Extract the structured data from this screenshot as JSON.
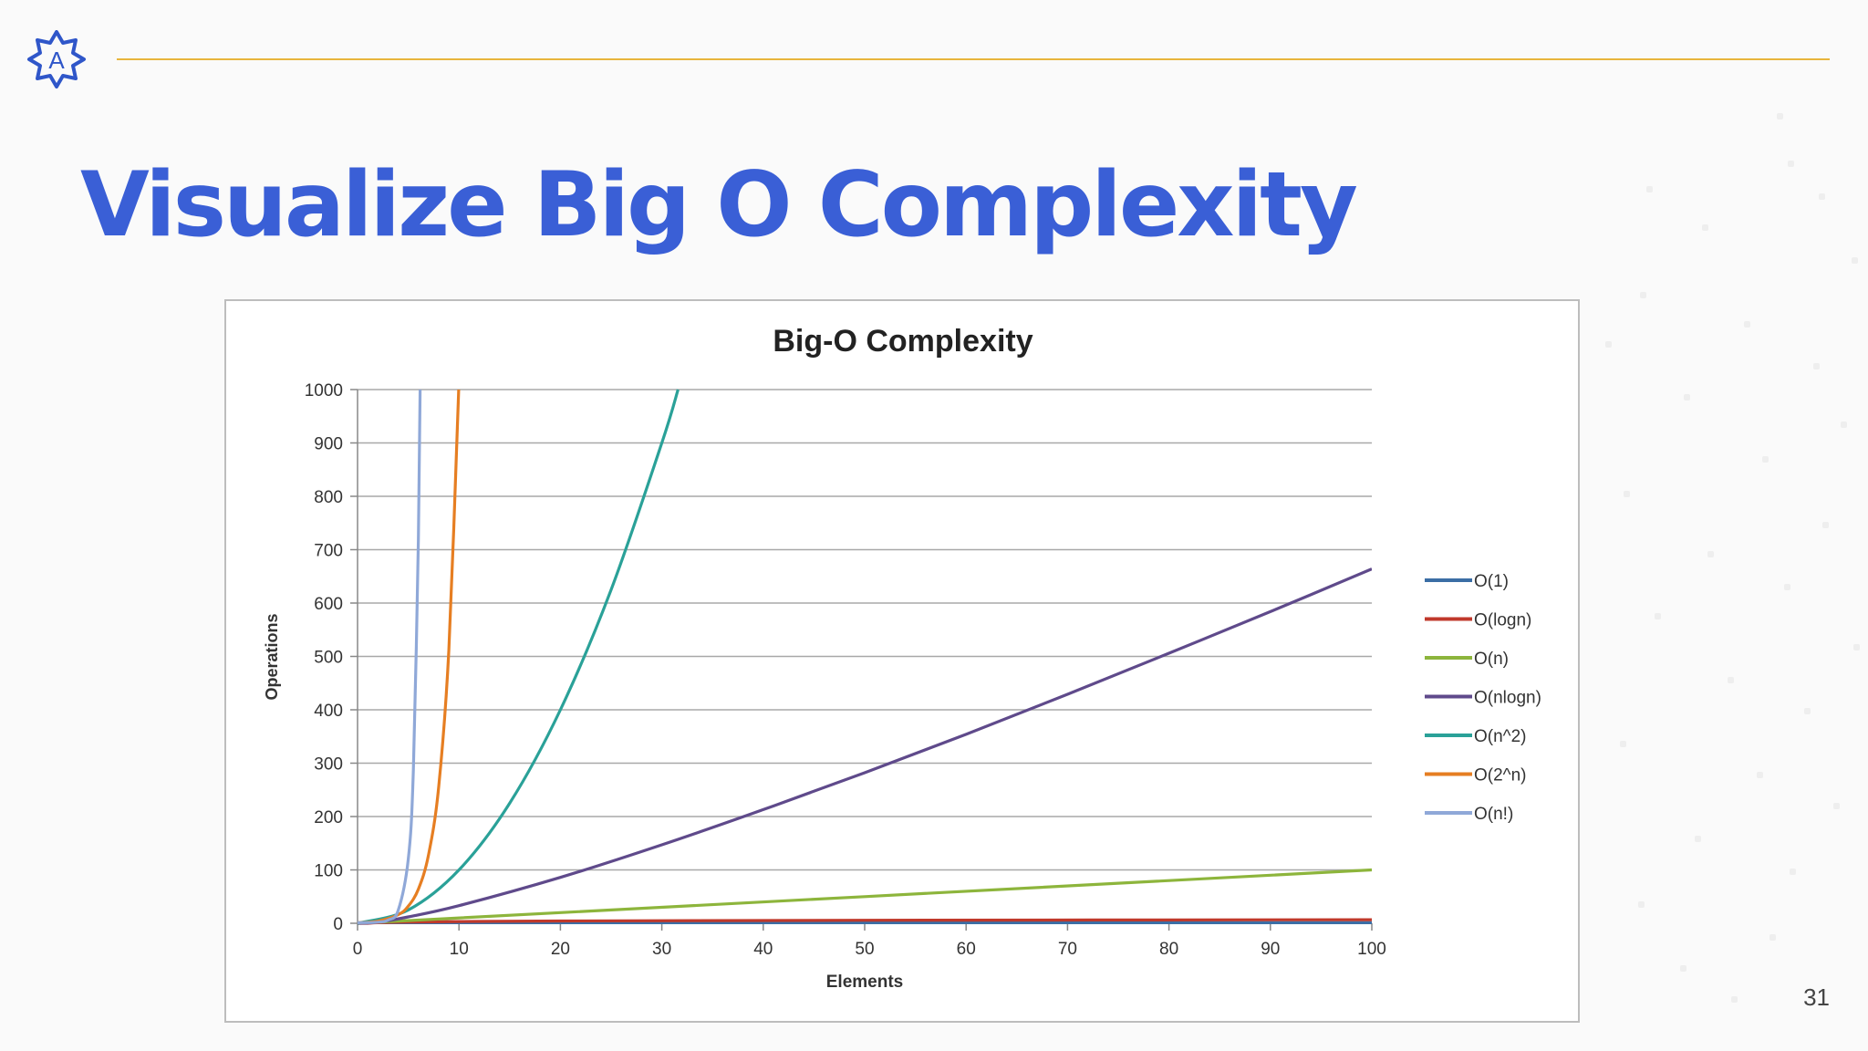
{
  "slide": {
    "title": "Visualize Big O Complexity",
    "page_number": "31",
    "logo_letter": "A"
  },
  "colors": {
    "title": "#3a5fd6",
    "rule": "#e8b53c",
    "logo": "#2f56c9"
  },
  "icons": {
    "logo": "angular-style-star-logo"
  },
  "chart_data": {
    "type": "line",
    "title": "Big-O Complexity",
    "xlabel": "Elements",
    "ylabel": "Operations",
    "xlim": [
      0,
      100
    ],
    "ylim": [
      0,
      1000
    ],
    "xticks": [
      0,
      10,
      20,
      30,
      40,
      50,
      60,
      70,
      80,
      90,
      100
    ],
    "yticks": [
      0,
      100,
      200,
      300,
      400,
      500,
      600,
      700,
      800,
      900,
      1000
    ],
    "grid": "horizontal",
    "legend_position": "right",
    "series": [
      {
        "name": "O(1)",
        "color": "#3b6ea5",
        "x": [
          0,
          100
        ],
        "y": [
          1,
          1
        ]
      },
      {
        "name": "O(logn)",
        "color": "#c0392b",
        "x": [
          0,
          1,
          2,
          5,
          10,
          20,
          50,
          100
        ],
        "y": [
          0,
          0,
          1,
          2.3,
          3.3,
          4.3,
          5.6,
          6.6
        ]
      },
      {
        "name": "O(n)",
        "color": "#8db53c",
        "x": [
          0,
          100
        ],
        "y": [
          0,
          100
        ]
      },
      {
        "name": "O(nlogn)",
        "color": "#5f4a8b",
        "x": [
          0,
          2,
          5,
          10,
          20,
          30,
          40,
          50,
          60,
          70,
          80,
          90,
          100
        ],
        "y": [
          0,
          2,
          12,
          33,
          86,
          147,
          213,
          282,
          354,
          429,
          506,
          584,
          664
        ]
      },
      {
        "name": "O(n^2)",
        "color": "#2aa198",
        "x": [
          0,
          5,
          10,
          15,
          20,
          25,
          30,
          31.6
        ],
        "y": [
          0,
          25,
          100,
          225,
          400,
          625,
          900,
          1000
        ]
      },
      {
        "name": "O(2^n)",
        "color": "#e67e22",
        "x": [
          0,
          2,
          4,
          5,
          6,
          7,
          8,
          9,
          9.97
        ],
        "y": [
          1,
          4,
          16,
          32,
          64,
          128,
          256,
          512,
          1000
        ]
      },
      {
        "name": "O(n!)",
        "color": "#8fa8d8",
        "x": [
          0,
          2,
          3,
          4,
          5,
          5.5,
          6,
          6.17
        ],
        "y": [
          1,
          2,
          6,
          24,
          120,
          287,
          720,
          1000
        ]
      }
    ]
  }
}
